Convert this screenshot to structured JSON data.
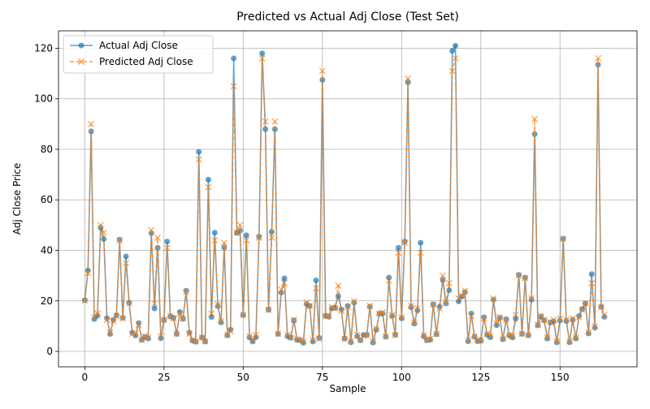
{
  "chart_data": {
    "type": "line",
    "title": "Predicted vs Actual Adj Close (Test Set)",
    "xlabel": "Sample",
    "ylabel": "Adj Close Price",
    "xlim": [
      -8.3,
      174.3
    ],
    "ylim": [
      -6.1,
      126.9
    ],
    "xticks": [
      0,
      25,
      50,
      75,
      100,
      125,
      150
    ],
    "yticks": [
      0,
      20,
      40,
      60,
      80,
      100,
      120
    ],
    "grid": true,
    "legend": "top-left",
    "series": [
      {
        "name": "Actual Adj Close",
        "color": "#1f77b4",
        "marker": "circle",
        "values": [
          20.3,
          32.0,
          87.1,
          12.8,
          14.1,
          49.0,
          44.5,
          13.1,
          6.9,
          12.5,
          14.3,
          44.2,
          13.3,
          37.6,
          19.3,
          7.4,
          6.3,
          11.2,
          4.6,
          5.8,
          5.1,
          46.8,
          17.0,
          41.0,
          5.2,
          12.4,
          43.5,
          13.8,
          13.3,
          6.9,
          15.6,
          12.9,
          24.0,
          7.4,
          4.3,
          3.8,
          79.0,
          5.5,
          3.9,
          68.0,
          13.6,
          47.0,
          17.9,
          11.5,
          41.1,
          6.4,
          8.6,
          116.0,
          46.9,
          47.8,
          14.4,
          46.0,
          5.5,
          3.9,
          5.6,
          45.4,
          118.0,
          88.0,
          16.5,
          47.3,
          88.0,
          6.9,
          23.3,
          28.9,
          6.0,
          5.4,
          12.3,
          4.6,
          4.4,
          3.4,
          18.8,
          18.0,
          3.9,
          28.1,
          5.3,
          107.5,
          14.0,
          13.7,
          17.1,
          17.2,
          21.9,
          16.6,
          5.1,
          18.0,
          3.6,
          19.3,
          6.0,
          4.4,
          6.5,
          6.5,
          17.7,
          3.5,
          8.6,
          14.9,
          15.0,
          5.8,
          29.2,
          14.0,
          6.6,
          41.0,
          13.1,
          43.5,
          106.5,
          17.5,
          11.0,
          16.2,
          43.0,
          6.0,
          4.4,
          4.6,
          18.6,
          6.8,
          17.7,
          28.2,
          19.0,
          24.2,
          119.0,
          121.0,
          19.8,
          21.7,
          23.5,
          4.0,
          15.0,
          5.8,
          4.0,
          4.2,
          13.5,
          6.6,
          5.6,
          20.5,
          10.4,
          13.3,
          4.8,
          12.7,
          6.3,
          5.5,
          12.9,
          30.3,
          6.9,
          29.2,
          6.4,
          20.5,
          86.0,
          10.3,
          13.8,
          12.3,
          5.1,
          11.5,
          11.9,
          3.6,
          12.2,
          44.6,
          12.0,
          3.6,
          12.5,
          5.1,
          14.0,
          16.7,
          19.0,
          7.1,
          30.6,
          9.4,
          113.5,
          17.6,
          13.7
        ]
      },
      {
        "name": "Predicted Adj Close",
        "color": "#ff7f0e",
        "marker": "x",
        "values": [
          20.0,
          31.0,
          90.0,
          13.5,
          15.0,
          50.0,
          47.0,
          12.5,
          7.5,
          12.0,
          14.0,
          44.0,
          13.0,
          35.0,
          19.0,
          7.0,
          7.0,
          10.5,
          4.5,
          6.0,
          5.5,
          48.0,
          19.0,
          45.0,
          6.0,
          12.5,
          41.0,
          14.0,
          13.0,
          7.0,
          15.0,
          13.0,
          23.5,
          7.0,
          4.5,
          4.0,
          76.0,
          5.5,
          4.0,
          65.0,
          15.0,
          44.0,
          18.5,
          12.0,
          43.0,
          6.5,
          8.0,
          105.0,
          47.0,
          50.0,
          14.5,
          44.0,
          6.0,
          4.5,
          6.5,
          45.0,
          116.0,
          91.0,
          16.5,
          45.0,
          91.0,
          7.0,
          24.5,
          27.0,
          6.5,
          5.5,
          12.5,
          5.0,
          4.5,
          4.0,
          19.5,
          18.0,
          4.5,
          25.0,
          5.0,
          111.0,
          14.0,
          14.0,
          17.5,
          17.0,
          26.0,
          16.0,
          5.0,
          17.5,
          4.0,
          20.0,
          6.5,
          4.5,
          6.0,
          6.5,
          18.0,
          4.0,
          9.0,
          15.0,
          15.5,
          6.0,
          28.0,
          14.5,
          6.5,
          39.0,
          13.5,
          43.0,
          108.0,
          18.0,
          11.5,
          17.0,
          39.0,
          6.5,
          4.5,
          5.0,
          18.5,
          7.0,
          17.0,
          30.0,
          19.5,
          27.0,
          111.0,
          116.0,
          21.0,
          22.0,
          24.0,
          4.5,
          14.0,
          6.0,
          4.5,
          4.5,
          13.0,
          7.0,
          6.0,
          21.0,
          11.0,
          13.5,
          5.0,
          12.5,
          6.5,
          6.0,
          14.5,
          30.0,
          7.0,
          29.0,
          6.5,
          21.0,
          92.0,
          10.5,
          14.0,
          12.5,
          5.5,
          11.5,
          12.5,
          4.0,
          13.0,
          44.5,
          12.5,
          4.0,
          13.0,
          5.5,
          13.5,
          16.5,
          19.0,
          7.5,
          27.0,
          10.0,
          116.0,
          17.5,
          14.5
        ]
      }
    ]
  }
}
